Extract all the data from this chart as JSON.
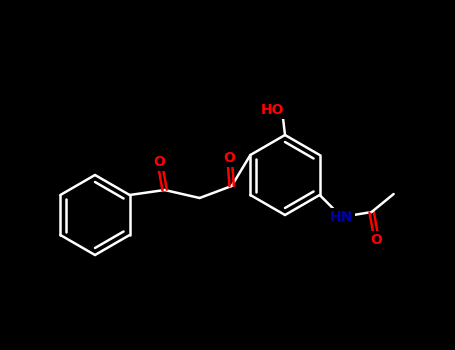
{
  "background_color": "#000000",
  "bond_color": "#ffffff",
  "atom_colors": {
    "O": "#ff0000",
    "N": "#0000aa",
    "C": "#ffffff",
    "H": "#ffffff"
  },
  "figsize": [
    4.55,
    3.5
  ],
  "dpi": 100
}
